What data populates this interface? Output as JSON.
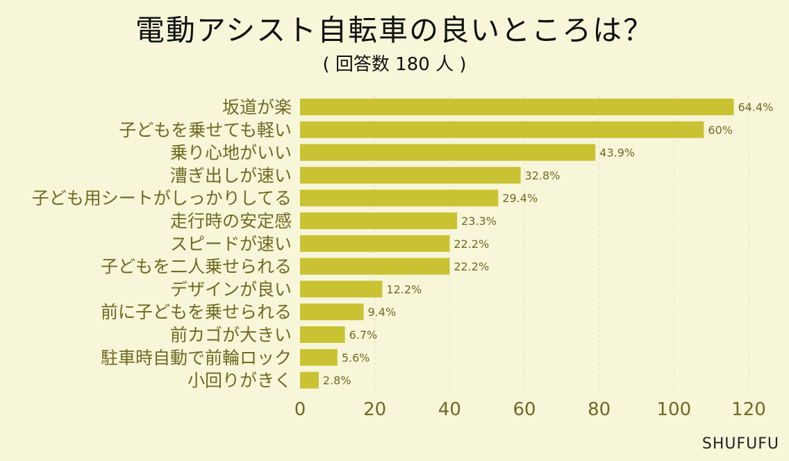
{
  "title": "電動アシスト自転車の良いところは？",
  "subtitle": "( 回答数 180 人 )",
  "watermark": "SHUFUFU",
  "colors": {
    "background": "#f7f6d9",
    "bar": "#c9c233",
    "label": "#6f6a22",
    "grid": "#dcdcc8"
  },
  "chart_data": {
    "type": "bar",
    "orientation": "horizontal",
    "categories": [
      "坂道が楽",
      "子どもを乗せても軽い",
      "乗り心地がいい",
      "漕ぎ出しが速い",
      "子ども用シートがしっかりしてる",
      "走行時の安定感",
      "スピードが速い",
      "子どもを二人乗せられる",
      "デザインが良い",
      "前に子どもを乗せられる",
      "前カゴが大きい",
      "駐車時自動で前輪ロック",
      "小回りがきく"
    ],
    "values": [
      116,
      108,
      79,
      59,
      53,
      42,
      40,
      40,
      22,
      17,
      12,
      10,
      5
    ],
    "value_labels": [
      "64.4%",
      "60%",
      "43.9%",
      "32.8%",
      "29.4%",
      "23.3%",
      "22.2%",
      "22.2%",
      "12.2%",
      "9.4%",
      "6.7%",
      "5.6%",
      "2.8%"
    ],
    "xlim": [
      0,
      120
    ],
    "xticks": [
      "0",
      "20",
      "40",
      "60",
      "80",
      "100",
      "120"
    ],
    "grid": true,
    "grid_style": "dashed vertical"
  }
}
